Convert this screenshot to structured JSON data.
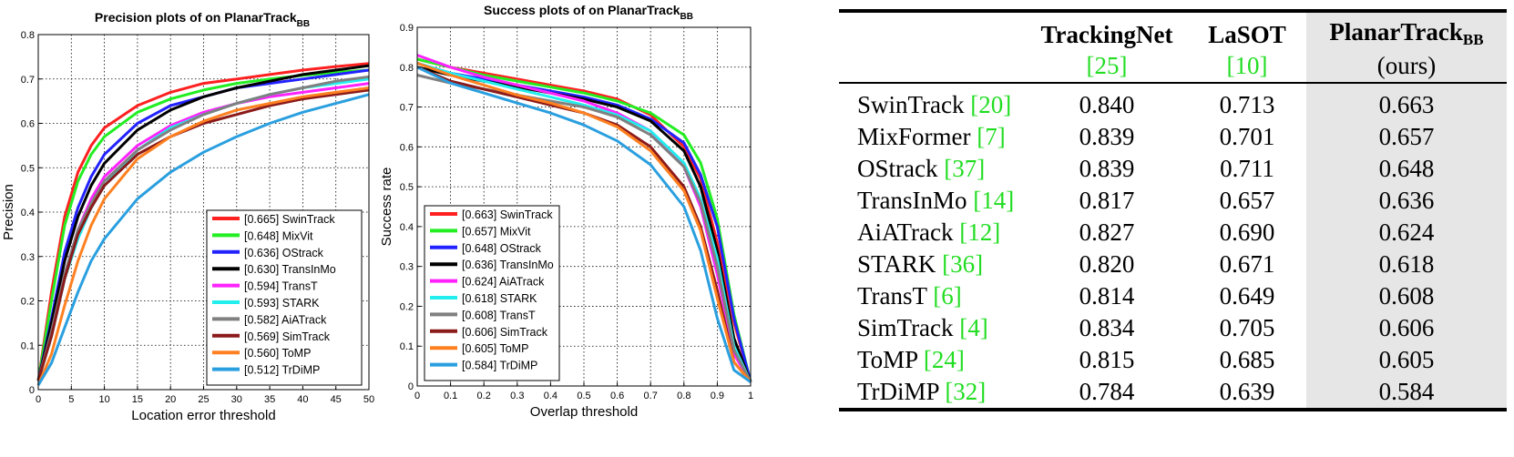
{
  "chart_data": [
    {
      "type": "line",
      "title": "Precision plots of  on PlanarTrack",
      "title_sub": "BB",
      "xlabel": "Location error threshold",
      "ylabel": "Precision",
      "xlim": [
        0,
        50
      ],
      "ylim": [
        0,
        0.8
      ],
      "xticks": [
        0,
        5,
        10,
        15,
        20,
        25,
        30,
        35,
        40,
        45,
        50
      ],
      "yticks": [
        0,
        0.1,
        0.2,
        0.3,
        0.4,
        0.5,
        0.6,
        0.7,
        0.8
      ],
      "grid": true,
      "legend_position": "lower-right",
      "x": [
        0,
        2,
        4,
        6,
        8,
        10,
        15,
        20,
        25,
        30,
        35,
        40,
        45,
        50
      ],
      "series": [
        {
          "name": "[0.665] SwinTrack",
          "color": "#ff2020",
          "values": [
            0.02,
            0.22,
            0.39,
            0.49,
            0.55,
            0.59,
            0.64,
            0.67,
            0.69,
            0.7,
            0.71,
            0.72,
            0.728,
            0.735
          ]
        },
        {
          "name": "[0.648] MixVit",
          "color": "#22ee22",
          "values": [
            0.02,
            0.2,
            0.37,
            0.47,
            0.53,
            0.57,
            0.625,
            0.655,
            0.675,
            0.69,
            0.7,
            0.708,
            0.715,
            0.72
          ]
        },
        {
          "name": "[0.636] OStrack",
          "color": "#2222ff",
          "values": [
            0.02,
            0.16,
            0.31,
            0.41,
            0.48,
            0.53,
            0.6,
            0.64,
            0.66,
            0.68,
            0.69,
            0.7,
            0.71,
            0.72
          ]
        },
        {
          "name": "[0.630] TransInMo",
          "color": "#000000",
          "values": [
            0.02,
            0.15,
            0.29,
            0.39,
            0.46,
            0.51,
            0.585,
            0.63,
            0.66,
            0.68,
            0.695,
            0.71,
            0.72,
            0.73
          ]
        },
        {
          "name": "[0.594] TransT",
          "color": "#ff22ff",
          "values": [
            0.02,
            0.13,
            0.26,
            0.36,
            0.43,
            0.48,
            0.55,
            0.595,
            0.625,
            0.645,
            0.66,
            0.67,
            0.68,
            0.69
          ]
        },
        {
          "name": "[0.593] STARK",
          "color": "#22eeee",
          "values": [
            0.02,
            0.12,
            0.25,
            0.34,
            0.41,
            0.46,
            0.54,
            0.59,
            0.62,
            0.645,
            0.665,
            0.68,
            0.69,
            0.7
          ]
        },
        {
          "name": "[0.582] AiATrack",
          "color": "#808080",
          "values": [
            0.02,
            0.13,
            0.26,
            0.36,
            0.42,
            0.47,
            0.54,
            0.585,
            0.62,
            0.645,
            0.665,
            0.68,
            0.695,
            0.705
          ]
        },
        {
          "name": "[0.569] SimTrack",
          "color": "#8b1a1a",
          "values": [
            0.02,
            0.12,
            0.25,
            0.35,
            0.41,
            0.46,
            0.53,
            0.57,
            0.6,
            0.62,
            0.64,
            0.655,
            0.665,
            0.675
          ]
        },
        {
          "name": "[0.560] ToMP",
          "color": "#ff8020",
          "values": [
            0.01,
            0.08,
            0.19,
            0.29,
            0.37,
            0.43,
            0.52,
            0.57,
            0.605,
            0.63,
            0.645,
            0.66,
            0.67,
            0.68
          ]
        },
        {
          "name": "[0.512] TrDiMP",
          "color": "#2a9fdf",
          "values": [
            0.01,
            0.06,
            0.14,
            0.22,
            0.29,
            0.34,
            0.43,
            0.49,
            0.535,
            0.57,
            0.6,
            0.625,
            0.645,
            0.665
          ]
        }
      ]
    },
    {
      "type": "line",
      "title": "Success plots of  on PlanarTrack",
      "title_sub": "BB",
      "xlabel": "Overlap threshold",
      "ylabel": "Success rate",
      "xlim": [
        0,
        1
      ],
      "ylim": [
        0,
        0.9
      ],
      "xticks": [
        0,
        0.1,
        0.2,
        0.3,
        0.4,
        0.5,
        0.6,
        0.7,
        0.8,
        0.9,
        1
      ],
      "yticks": [
        0,
        0.1,
        0.2,
        0.3,
        0.4,
        0.5,
        0.6,
        0.7,
        0.8,
        0.9
      ],
      "grid": true,
      "legend_position": "lower-left",
      "x": [
        0,
        0.1,
        0.2,
        0.3,
        0.4,
        0.5,
        0.6,
        0.7,
        0.8,
        0.85,
        0.9,
        0.95,
        1.0
      ],
      "series": [
        {
          "name": "[0.663] SwinTrack",
          "color": "#ff2020",
          "values": [
            0.82,
            0.8,
            0.785,
            0.77,
            0.755,
            0.74,
            0.72,
            0.68,
            0.6,
            0.52,
            0.36,
            0.16,
            0.01
          ]
        },
        {
          "name": "[0.657] MixVit",
          "color": "#22ee22",
          "values": [
            0.82,
            0.8,
            0.78,
            0.765,
            0.75,
            0.735,
            0.715,
            0.685,
            0.63,
            0.56,
            0.42,
            0.18,
            0.01
          ]
        },
        {
          "name": "[0.648] OStrack",
          "color": "#2222ff",
          "values": [
            0.81,
            0.785,
            0.77,
            0.755,
            0.74,
            0.725,
            0.705,
            0.67,
            0.61,
            0.53,
            0.4,
            0.17,
            0.01
          ]
        },
        {
          "name": "[0.636] TransInMo",
          "color": "#000000",
          "values": [
            0.8,
            0.78,
            0.765,
            0.75,
            0.735,
            0.72,
            0.7,
            0.665,
            0.59,
            0.5,
            0.34,
            0.12,
            0.01
          ]
        },
        {
          "name": "[0.624] AiATrack",
          "color": "#ff22ff",
          "values": [
            0.83,
            0.8,
            0.775,
            0.755,
            0.735,
            0.715,
            0.685,
            0.64,
            0.55,
            0.45,
            0.28,
            0.08,
            0.01
          ]
        },
        {
          "name": "[0.618] STARK",
          "color": "#22eeee",
          "values": [
            0.81,
            0.785,
            0.765,
            0.745,
            0.725,
            0.705,
            0.68,
            0.64,
            0.56,
            0.47,
            0.32,
            0.1,
            0.01
          ]
        },
        {
          "name": "[0.608] TransT",
          "color": "#808080",
          "values": [
            0.78,
            0.76,
            0.745,
            0.73,
            0.715,
            0.7,
            0.675,
            0.63,
            0.55,
            0.46,
            0.3,
            0.09,
            0.01
          ]
        },
        {
          "name": "[0.606] SimTrack",
          "color": "#8b1a1a",
          "values": [
            0.8,
            0.765,
            0.745,
            0.725,
            0.705,
            0.685,
            0.655,
            0.6,
            0.5,
            0.4,
            0.24,
            0.06,
            0.01
          ]
        },
        {
          "name": "[0.605] ToMP",
          "color": "#ff8020",
          "values": [
            0.81,
            0.78,
            0.755,
            0.73,
            0.71,
            0.685,
            0.65,
            0.59,
            0.49,
            0.39,
            0.22,
            0.06,
            0.01
          ]
        },
        {
          "name": "[0.584] TrDiMP",
          "color": "#2a9fdf",
          "values": [
            0.8,
            0.76,
            0.735,
            0.71,
            0.685,
            0.655,
            0.615,
            0.555,
            0.45,
            0.34,
            0.17,
            0.04,
            0.01
          ]
        }
      ]
    }
  ],
  "table": {
    "headers": [
      {
        "name": "TrackingNet",
        "ref": "[25]"
      },
      {
        "name": "LaSOT",
        "ref": "[10]"
      },
      {
        "name": "PlanarTrack",
        "sub": "BB",
        "note": "(ours)"
      }
    ],
    "rows": [
      {
        "method": "SwinTrack",
        "ref": "[20]",
        "v1": "0.840",
        "v2": "0.713",
        "v3": "0.663"
      },
      {
        "method": "MixFormer",
        "ref": "[7]",
        "v1": "0.839",
        "v2": "0.701",
        "v3": "0.657"
      },
      {
        "method": "OStrack",
        "ref": "[37]",
        "v1": "0.839",
        "v2": "0.711",
        "v3": "0.648"
      },
      {
        "method": "TransInMo",
        "ref": "[14]",
        "v1": "0.817",
        "v2": "0.657",
        "v3": "0.636"
      },
      {
        "method": "AiATrack",
        "ref": "[12]",
        "v1": "0.827",
        "v2": "0.690",
        "v3": "0.624"
      },
      {
        "method": "STARK",
        "ref": "[36]",
        "v1": "0.820",
        "v2": "0.671",
        "v3": "0.618"
      },
      {
        "method": "TransT",
        "ref": "[6]",
        "v1": "0.814",
        "v2": "0.649",
        "v3": "0.608"
      },
      {
        "method": "SimTrack",
        "ref": "[4]",
        "v1": "0.834",
        "v2": "0.705",
        "v3": "0.606"
      },
      {
        "method": "ToMP",
        "ref": "[24]",
        "v1": "0.815",
        "v2": "0.685",
        "v3": "0.605"
      },
      {
        "method": "TrDiMP",
        "ref": "[32]",
        "v1": "0.784",
        "v2": "0.639",
        "v3": "0.584"
      }
    ]
  }
}
